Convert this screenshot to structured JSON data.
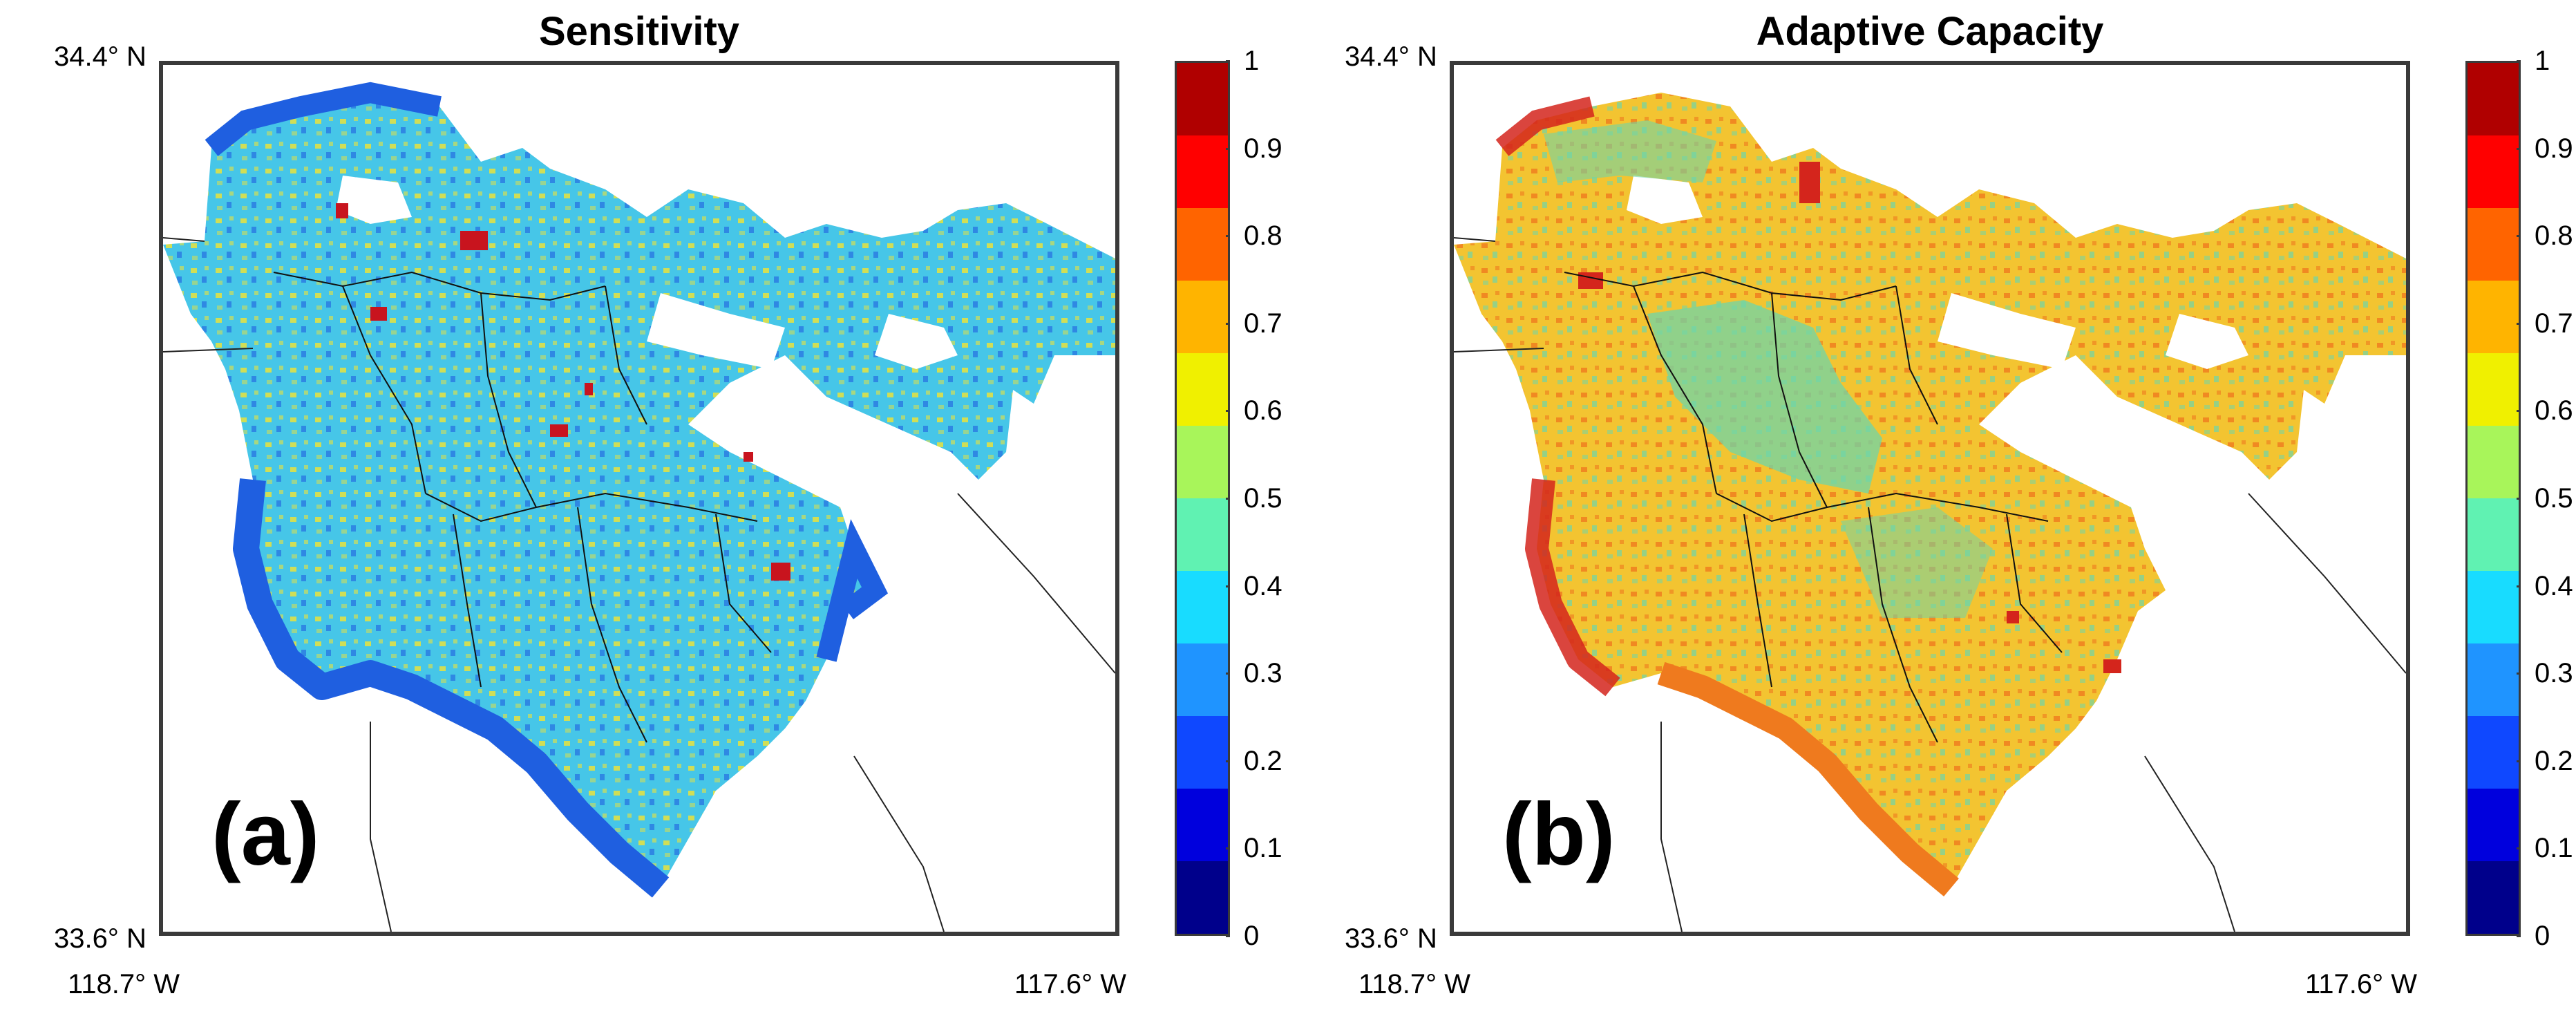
{
  "figure": {
    "panels": [
      {
        "id": "a",
        "title": "Sensitivity",
        "label": "(a)",
        "lat_top": "34.4° N",
        "lat_bottom": "33.6° N",
        "lon_left": "118.7° W",
        "lon_right": "117.6° W",
        "dominant_color": "#46c6e8",
        "secondary_color": "#1f5fe0",
        "accent_color": "#e9e23c",
        "hotspot_color": "#c8141e"
      },
      {
        "id": "b",
        "title": "Adaptive Capacity",
        "label": "(b)",
        "lat_top": "34.4° N",
        "lat_bottom": "33.6° N",
        "lon_left": "118.7° W",
        "lon_right": "117.6° W",
        "dominant_color": "#f3c431",
        "secondary_color": "#ef7a1e",
        "accent_color": "#6fd6a8",
        "hotspot_color": "#d4251c"
      }
    ]
  },
  "colorbar": {
    "ticks": [
      "1",
      "0.9",
      "0.8",
      "0.7",
      "0.6",
      "0.5",
      "0.4",
      "0.3",
      "0.2",
      "0.1",
      "0"
    ],
    "colors": [
      "#00008b",
      "#0000dd",
      "#0f48ff",
      "#1f94ff",
      "#18dcff",
      "#60f2b2",
      "#a8f55a",
      "#f0f000",
      "#ffb400",
      "#ff6400",
      "#ff0000",
      "#b00000"
    ]
  }
}
